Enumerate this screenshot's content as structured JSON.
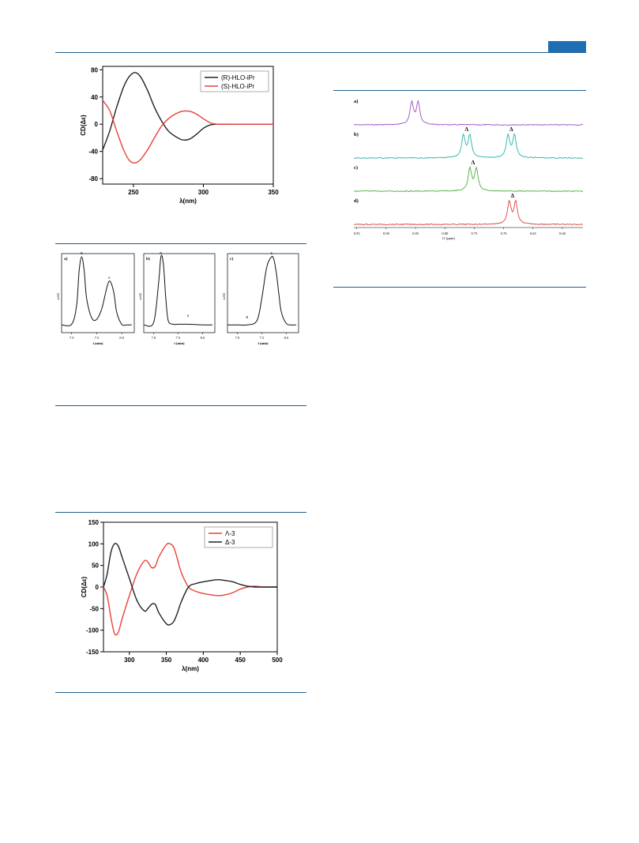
{
  "charts": [
    {
      "id": "cd1",
      "type": "line",
      "ylabel": "CD(Δε)",
      "xlabel": "λ(nm)",
      "xlim": [
        228,
        350
      ],
      "ylim": [
        -88,
        85
      ],
      "xticks": [
        250,
        300,
        350
      ],
      "yticks": [
        80,
        40,
        0,
        -40,
        -80
      ],
      "legend_position": "top-right",
      "series": [
        {
          "name": "(R)-HLO-iPr",
          "color": "#222222",
          "x": [
            228,
            233,
            238,
            243,
            247,
            251,
            255,
            260,
            265,
            270,
            275,
            280,
            285,
            290,
            295,
            300,
            305,
            310,
            320,
            330,
            350
          ],
          "y": [
            -38,
            -10,
            25,
            55,
            70,
            76,
            70,
            50,
            25,
            5,
            -10,
            -18,
            -23,
            -22,
            -15,
            -6,
            -1,
            0,
            0,
            0,
            0
          ]
        },
        {
          "name": "(S)-HLO-iPr",
          "color": "#e8413a",
          "x": [
            228,
            233,
            238,
            243,
            247,
            251,
            255,
            260,
            265,
            270,
            275,
            280,
            285,
            290,
            295,
            300,
            305,
            310,
            320,
            330,
            350
          ],
          "y": [
            35,
            20,
            -10,
            -38,
            -53,
            -57,
            -52,
            -38,
            -20,
            -3,
            8,
            15,
            19,
            19,
            15,
            8,
            2,
            0,
            0,
            0,
            0
          ]
        }
      ]
    },
    {
      "id": "hplc",
      "type": "line",
      "panels": [
        {
          "panel_label": "a)",
          "ylabel": "mAU",
          "xlabel": "t (min)",
          "xticks": [
            "7.0",
            "7.5",
            "8.0"
          ],
          "peak_labels": [
            "R",
            "S"
          ],
          "x": [
            6.8,
            7.0,
            7.1,
            7.15,
            7.2,
            7.25,
            7.3,
            7.4,
            7.5,
            7.6,
            7.7,
            7.75,
            7.8,
            7.85,
            7.9,
            8.0,
            8.1,
            8.2
          ],
          "y": [
            0.02,
            0.03,
            0.3,
            0.8,
            1.0,
            0.8,
            0.4,
            0.12,
            0.1,
            0.25,
            0.55,
            0.65,
            0.6,
            0.45,
            0.2,
            0.03,
            0.02,
            0.02
          ]
        },
        {
          "panel_label": "b)",
          "ylabel": "mAU",
          "xlabel": "t (min)",
          "xticks": [
            "7.0",
            "7.5",
            "8.0"
          ],
          "peak_labels": [
            "R",
            "S"
          ],
          "x": [
            6.8,
            7.0,
            7.1,
            7.15,
            7.2,
            7.25,
            7.3,
            7.4,
            7.5,
            7.7,
            8.0,
            8.2
          ],
          "y": [
            0.02,
            0.05,
            0.6,
            1.0,
            0.9,
            0.4,
            0.08,
            0.03,
            0.03,
            0.03,
            0.02,
            0.02
          ]
        },
        {
          "panel_label": "c)",
          "ylabel": "mAU",
          "xlabel": "t (min)",
          "xticks": [
            "7.0",
            "7.5",
            "8.0"
          ],
          "peak_labels": [
            "R",
            "S"
          ],
          "x": [
            6.8,
            7.0,
            7.2,
            7.4,
            7.5,
            7.6,
            7.7,
            7.75,
            7.8,
            7.85,
            7.9,
            8.0,
            8.1,
            8.2
          ],
          "y": [
            0.02,
            0.02,
            0.02,
            0.08,
            0.4,
            0.85,
            1.0,
            0.95,
            0.75,
            0.45,
            0.2,
            0.04,
            0.02,
            0.02
          ]
        }
      ]
    },
    {
      "id": "cd2",
      "type": "line",
      "ylabel": "CD(Δε)",
      "xlabel": "λ(nm)",
      "xlim": [
        265,
        500
      ],
      "ylim": [
        -150,
        150
      ],
      "xticks": [
        300,
        350,
        400,
        450,
        500
      ],
      "yticks": [
        150,
        100,
        50,
        0,
        -50,
        -100,
        -150
      ],
      "legend_position": "top-right",
      "series": [
        {
          "name": "Λ-3",
          "color": "#e8413a",
          "x": [
            265,
            270,
            275,
            280,
            285,
            290,
            300,
            310,
            320,
            325,
            330,
            335,
            340,
            350,
            355,
            360,
            365,
            370,
            380,
            390,
            400,
            410,
            420,
            430,
            440,
            450,
            460,
            470,
            480,
            490,
            500
          ],
          "y": [
            0,
            -20,
            -70,
            -108,
            -105,
            -75,
            -20,
            30,
            60,
            58,
            45,
            48,
            70,
            98,
            100,
            92,
            65,
            35,
            0,
            -10,
            -15,
            -18,
            -20,
            -18,
            -13,
            -5,
            0,
            2,
            0,
            0,
            0
          ]
        },
        {
          "name": "Δ-3",
          "color": "#222222",
          "x": [
            265,
            270,
            275,
            280,
            285,
            290,
            300,
            310,
            320,
            325,
            330,
            335,
            340,
            350,
            355,
            360,
            365,
            370,
            380,
            390,
            400,
            410,
            420,
            430,
            440,
            450,
            460,
            470,
            480,
            490,
            500
          ],
          "y": [
            0,
            30,
            80,
            100,
            95,
            70,
            20,
            -30,
            -55,
            -50,
            -40,
            -40,
            -60,
            -85,
            -87,
            -80,
            -60,
            -35,
            0,
            8,
            12,
            15,
            17,
            15,
            12,
            6,
            2,
            0,
            0,
            0,
            0
          ]
        }
      ]
    },
    {
      "id": "nmr",
      "type": "line",
      "xlabel": "f1 (ppm)",
      "xticks": [
        "0.95",
        "0.90",
        "0.85",
        "0.80",
        "0.75",
        "0.70",
        "0.65",
        "0.60"
      ],
      "xlim": [
        0.955,
        0.565
      ],
      "panels": [
        {
          "panel_label": "a)",
          "color": "#9b4fc4",
          "peak_labels": [],
          "doublets": [
            0.851
          ]
        },
        {
          "panel_label": "b)",
          "color": "#27b3a8",
          "peak_labels": [
            "Λ",
            "Δ"
          ],
          "doublets": [
            0.763,
            0.687
          ]
        },
        {
          "panel_label": "c)",
          "color": "#4cad3c",
          "peak_labels": [
            "Λ"
          ],
          "doublets": [
            0.752
          ]
        },
        {
          "panel_label": "d)",
          "color": "#d9423c",
          "peak_labels": [
            "Δ"
          ],
          "doublets": [
            0.685
          ]
        }
      ]
    }
  ],
  "colors": {
    "rule": "#1f5f8f",
    "header_tab": "#1f6eb3"
  }
}
